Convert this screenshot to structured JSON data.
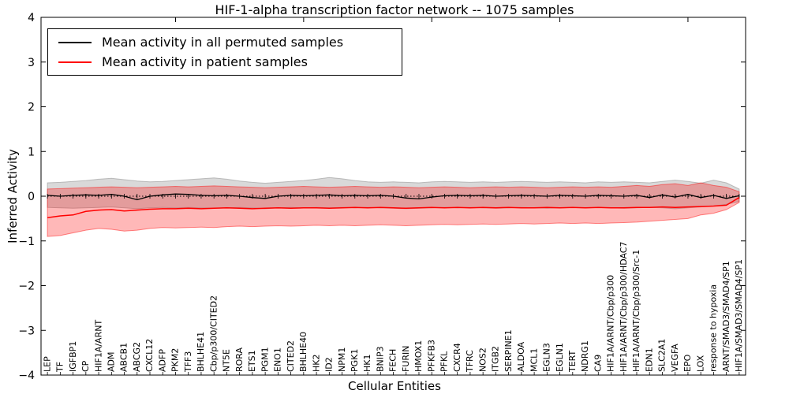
{
  "chart_data": {
    "type": "line",
    "title": "HIF-1-alpha transcription factor network -- 1075 samples",
    "xlabel": "Cellular Entities",
    "ylabel": "Inferred Activity",
    "ylim": [
      -4,
      4
    ],
    "yticks": [
      -4,
      -3,
      -2,
      -1,
      0,
      1,
      2,
      3,
      4
    ],
    "grid": false,
    "legend_position": "upper left",
    "zero_line": true,
    "colors": {
      "permuted_line": "#000000",
      "patient_line": "#ff0000",
      "permuted_band": "#888888",
      "patient_band": "#ff0000",
      "axis": "#000000",
      "background": "#ffffff"
    },
    "categories": [
      "LEP",
      "TF",
      "IGFBP1",
      "CP",
      "HIF1A/ARNT",
      "ADM",
      "ABCB1",
      "ABCG2",
      "CXCL12",
      "ADFP",
      "PKM2",
      "TFF3",
      "BHLHE41",
      "Cbp/p300/CITED2",
      "NT5E",
      "RORA",
      "ETS1",
      "PGM1",
      "ENO1",
      "CITED2",
      "BHLHE40",
      "HK2",
      "ID2",
      "NPM1",
      "PGK1",
      "HK1",
      "BNIP3",
      "FECH",
      "FURIN",
      "HMOX1",
      "PFKFB3",
      "PFKL",
      "CXCR4",
      "TFRC",
      "NOS2",
      "ITGB2",
      "SERPINE1",
      "ALDOA",
      "MCL1",
      "EGLN3",
      "EGLN1",
      "TERT",
      "NDRG1",
      "CA9",
      "HIF1A/ARNT/Cbp/p300",
      "HIF1A/ARNT/Cbp/p300/HDAC7",
      "HIF1A/ARNT/Cbp/p300/Src-1",
      "EDN1",
      "SLC2A1",
      "VEGFA",
      "EPO",
      "LOX",
      "response to hypoxia",
      "ARNT/SMAD3/SMAD4/SP1",
      "HIF1A/SMAD3/SMAD4/SP1"
    ],
    "series": [
      {
        "name": "Mean activity in all permuted samples",
        "color": "#000000",
        "band_color": "#888888",
        "band_opacity": 0.32,
        "values": [
          0.02,
          0.0,
          0.02,
          0.03,
          0.02,
          0.04,
          0.0,
          -0.08,
          0.0,
          0.03,
          0.05,
          0.04,
          0.02,
          0.01,
          0.02,
          0.0,
          -0.03,
          -0.05,
          0.0,
          0.02,
          0.01,
          0.02,
          0.03,
          0.01,
          0.02,
          0.01,
          0.02,
          0.0,
          -0.04,
          -0.06,
          -0.02,
          0.01,
          0.02,
          0.01,
          0.02,
          0.0,
          0.01,
          0.02,
          0.01,
          0.0,
          0.02,
          0.01,
          0.0,
          0.02,
          0.01,
          0.0,
          0.02,
          -0.03,
          0.03,
          -0.02,
          0.04,
          -0.03,
          0.02,
          -0.05,
          0.01
        ],
        "band_upper": [
          0.3,
          0.31,
          0.33,
          0.35,
          0.38,
          0.4,
          0.37,
          0.34,
          0.32,
          0.33,
          0.35,
          0.37,
          0.39,
          0.41,
          0.38,
          0.34,
          0.31,
          0.29,
          0.31,
          0.33,
          0.35,
          0.38,
          0.42,
          0.39,
          0.35,
          0.32,
          0.31,
          0.32,
          0.31,
          0.3,
          0.32,
          0.33,
          0.32,
          0.31,
          0.32,
          0.31,
          0.32,
          0.33,
          0.32,
          0.31,
          0.32,
          0.31,
          0.3,
          0.32,
          0.31,
          0.32,
          0.31,
          0.3,
          0.33,
          0.36,
          0.33,
          0.29,
          0.36,
          0.3,
          0.16
        ],
        "band_lower": [
          -0.25,
          -0.26,
          -0.27,
          -0.26,
          -0.25,
          -0.24,
          -0.26,
          -0.28,
          -0.26,
          -0.25,
          -0.26,
          -0.25,
          -0.26,
          -0.27,
          -0.26,
          -0.25,
          -0.26,
          -0.28,
          -0.26,
          -0.25,
          -0.26,
          -0.25,
          -0.26,
          -0.25,
          -0.26,
          -0.25,
          -0.26,
          -0.27,
          -0.28,
          -0.27,
          -0.26,
          -0.25,
          -0.26,
          -0.25,
          -0.26,
          -0.27,
          -0.26,
          -0.25,
          -0.26,
          -0.27,
          -0.26,
          -0.25,
          -0.26,
          -0.25,
          -0.26,
          -0.27,
          -0.26,
          -0.25,
          -0.26,
          -0.28,
          -0.26,
          -0.24,
          -0.22,
          -0.18,
          -0.12
        ]
      },
      {
        "name": "Mean activity in patient samples",
        "color": "#ff0000",
        "band_color": "#ff0000",
        "band_opacity": 0.28,
        "values": [
          -0.48,
          -0.44,
          -0.42,
          -0.34,
          -0.31,
          -0.3,
          -0.33,
          -0.31,
          -0.29,
          -0.28,
          -0.28,
          -0.27,
          -0.28,
          -0.27,
          -0.26,
          -0.27,
          -0.28,
          -0.27,
          -0.26,
          -0.27,
          -0.26,
          -0.26,
          -0.27,
          -0.26,
          -0.25,
          -0.26,
          -0.25,
          -0.26,
          -0.27,
          -0.26,
          -0.25,
          -0.26,
          -0.25,
          -0.26,
          -0.25,
          -0.26,
          -0.25,
          -0.26,
          -0.26,
          -0.25,
          -0.26,
          -0.25,
          -0.26,
          -0.25,
          -0.26,
          -0.26,
          -0.25,
          -0.25,
          -0.24,
          -0.25,
          -0.24,
          -0.23,
          -0.22,
          -0.2,
          -0.03
        ],
        "band_upper": [
          0.16,
          0.17,
          0.18,
          0.19,
          0.2,
          0.21,
          0.2,
          0.19,
          0.2,
          0.21,
          0.22,
          0.21,
          0.22,
          0.23,
          0.22,
          0.21,
          0.2,
          0.19,
          0.2,
          0.21,
          0.22,
          0.21,
          0.2,
          0.21,
          0.22,
          0.21,
          0.2,
          0.21,
          0.2,
          0.19,
          0.2,
          0.21,
          0.2,
          0.19,
          0.2,
          0.21,
          0.2,
          0.21,
          0.2,
          0.19,
          0.2,
          0.21,
          0.2,
          0.21,
          0.2,
          0.22,
          0.24,
          0.22,
          0.26,
          0.28,
          0.24,
          0.3,
          0.24,
          0.2,
          0.1
        ],
        "band_lower": [
          -0.9,
          -0.88,
          -0.82,
          -0.76,
          -0.72,
          -0.74,
          -0.78,
          -0.76,
          -0.72,
          -0.7,
          -0.71,
          -0.7,
          -0.69,
          -0.7,
          -0.68,
          -0.67,
          -0.68,
          -0.67,
          -0.66,
          -0.67,
          -0.66,
          -0.65,
          -0.66,
          -0.65,
          -0.66,
          -0.65,
          -0.64,
          -0.65,
          -0.66,
          -0.65,
          -0.64,
          -0.63,
          -0.64,
          -0.63,
          -0.62,
          -0.63,
          -0.62,
          -0.61,
          -0.62,
          -0.61,
          -0.6,
          -0.61,
          -0.6,
          -0.61,
          -0.6,
          -0.59,
          -0.58,
          -0.56,
          -0.54,
          -0.52,
          -0.5,
          -0.42,
          -0.38,
          -0.3,
          -0.14
        ]
      }
    ]
  }
}
